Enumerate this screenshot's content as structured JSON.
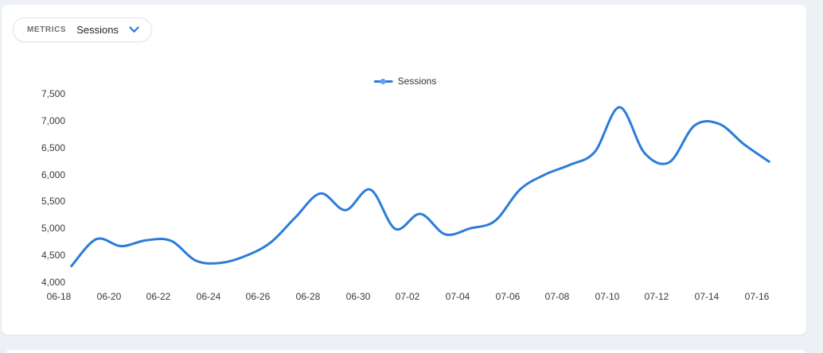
{
  "metrics_selector": {
    "label": "METRICS",
    "value": "Sessions"
  },
  "legend": {
    "items": [
      {
        "label": "Sessions",
        "color": "#2b7cd9"
      }
    ]
  },
  "chart_data": {
    "type": "line",
    "title": "",
    "xlabel": "",
    "ylabel": "",
    "categories": [
      "06-18",
      "06-19",
      "06-20",
      "06-21",
      "06-22",
      "06-23",
      "06-24",
      "06-25",
      "06-26",
      "06-27",
      "06-28",
      "06-29",
      "06-30",
      "07-01",
      "07-02",
      "07-03",
      "07-04",
      "07-05",
      "07-06",
      "07-07",
      "07-08",
      "07-09",
      "07-10",
      "07-11",
      "07-12",
      "07-13",
      "07-14",
      "07-15",
      "07-16"
    ],
    "series": [
      {
        "name": "Sessions",
        "color": "#2b7cd9",
        "values": [
          4300,
          4800,
          4670,
          4780,
          4770,
          4400,
          4360,
          4490,
          4740,
          5210,
          5650,
          5340,
          5720,
          4990,
          5270,
          4890,
          5000,
          5140,
          5720,
          6000,
          6180,
          6420,
          7250,
          6400,
          6230,
          6910,
          6940,
          6560,
          6240
        ]
      }
    ],
    "ylim": [
      4000,
      7500
    ],
    "y_tick_step": 500,
    "y_tick_labels": [
      "4,000",
      "4,500",
      "5,000",
      "5,500",
      "6,000",
      "6,500",
      "7,000",
      "7,500"
    ],
    "x_tick_interval": 2,
    "grid": false,
    "smooth": true,
    "legend_position": "top-center"
  },
  "colors": {
    "page_background": "#edf1f5",
    "card_background": "#ffffff",
    "axis_label": "#3b3a39",
    "accent_blue": "#2b7cd9"
  }
}
